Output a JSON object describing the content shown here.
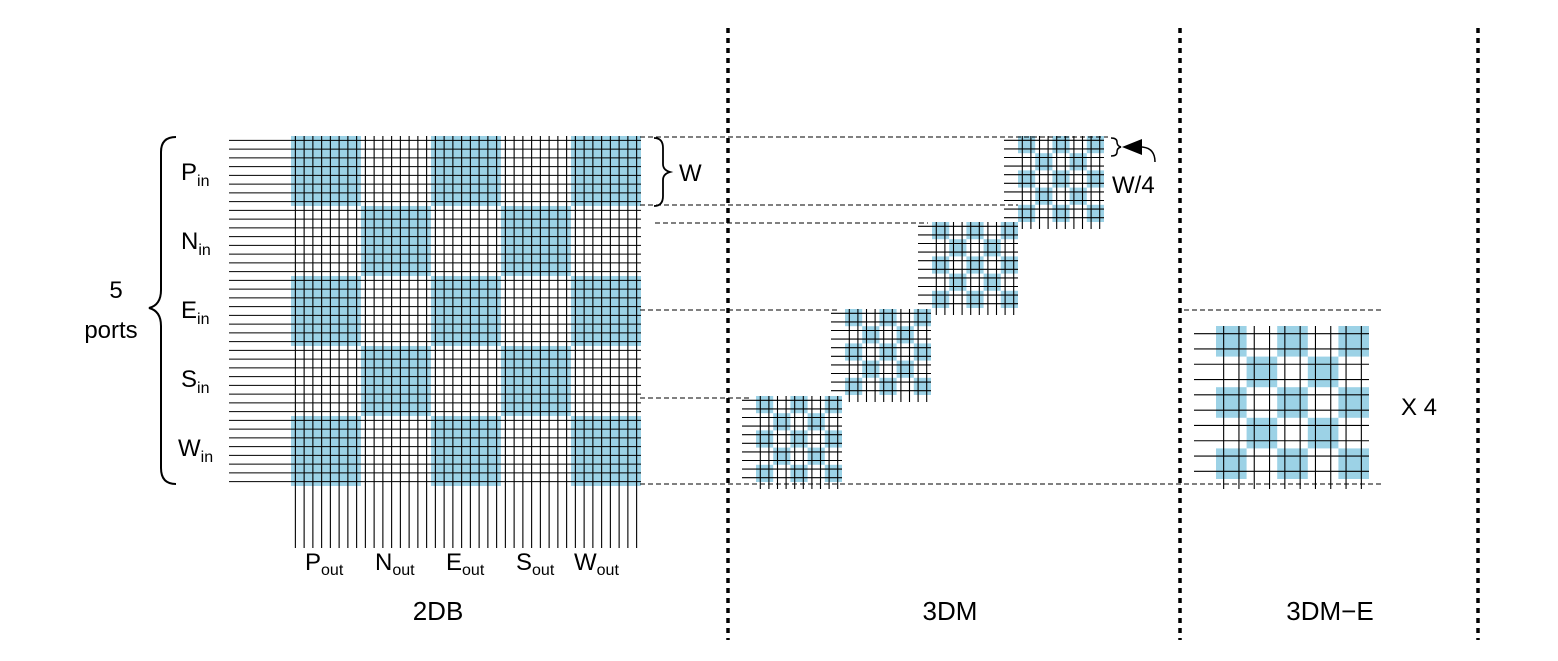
{
  "colors": {
    "fill": "#9cd2e6",
    "line": "#000000",
    "background": "#ffffff"
  },
  "inputs": [
    {
      "main": "P",
      "sub": "in"
    },
    {
      "main": "N",
      "sub": "in"
    },
    {
      "main": "E",
      "sub": "in"
    },
    {
      "main": "S",
      "sub": "in"
    },
    {
      "main": "W",
      "sub": "in"
    }
  ],
  "outputs": [
    {
      "main": "P",
      "sub": "out"
    },
    {
      "main": "N",
      "sub": "out"
    },
    {
      "main": "E",
      "sub": "out"
    },
    {
      "main": "S",
      "sub": "out"
    },
    {
      "main": "W",
      "sub": "out"
    }
  ],
  "ports_label": {
    "line1": "5",
    "line2": "ports"
  },
  "width_label": "W",
  "quarter_width_label": "W/4",
  "multiplier_label": "X 4",
  "titles": {
    "b2d": "2DB",
    "m3d": "3DM",
    "m3de": "3DM−E"
  }
}
